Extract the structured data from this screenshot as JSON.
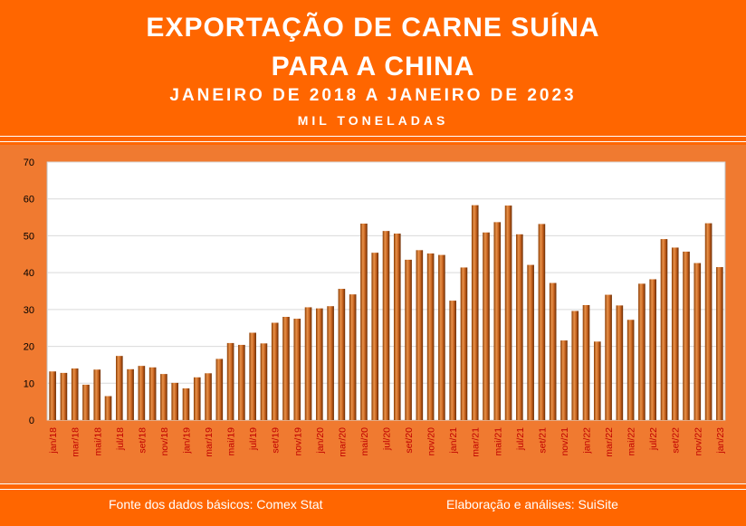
{
  "header": {
    "title_line1": "EXPORTAÇÃO DE CARNE SUÍNA",
    "title_line2": "PARA A CHINA",
    "subtitle": "JANEIRO DE 2018 A JANEIRO DE 2023",
    "unit": "MIL TONELADAS"
  },
  "footer": {
    "source": "Fonte dos dados básicos: Comex Stat",
    "credit": "Elaboração e análises: SuiSite"
  },
  "colors": {
    "frame": "#ff6600",
    "panel": "#f07a30",
    "bar_light": "#e8924a",
    "bar_dark": "#7a3300",
    "tick_label": "#c00000"
  },
  "chart_data": {
    "type": "bar",
    "title": "EXPORTAÇÃO DE CARNE SUÍNA PARA A CHINA",
    "subtitle": "JANEIRO DE 2018 A JANEIRO DE 2023",
    "ylabel": "MIL TONELADAS",
    "ylim": [
      0,
      70
    ],
    "y_ticks": [
      "0",
      "10",
      "20",
      "30",
      "40",
      "50",
      "60",
      "70"
    ],
    "grid": true,
    "legend": "none",
    "categories": [
      "jan/18",
      "fev/18",
      "mar/18",
      "abr/18",
      "mai/18",
      "jun/18",
      "jul/18",
      "ago/18",
      "set/18",
      "out/18",
      "nov/18",
      "dez/18",
      "jan/19",
      "fev/19",
      "mar/19",
      "abr/19",
      "mai/19",
      "jun/19",
      "jul/19",
      "ago/19",
      "set/19",
      "out/19",
      "nov/19",
      "dez/19",
      "jan/20",
      "fev/20",
      "mar/20",
      "abr/20",
      "mai/20",
      "jun/20",
      "jul/20",
      "ago/20",
      "set/20",
      "out/20",
      "nov/20",
      "dez/20",
      "jan/21",
      "fev/21",
      "mar/21",
      "abr/21",
      "mai/21",
      "jun/21",
      "jul/21",
      "ago/21",
      "set/21",
      "out/21",
      "nov/21",
      "dez/21",
      "jan/22",
      "fev/22",
      "mar/22",
      "abr/22",
      "mai/22",
      "jun/22",
      "jul/22",
      "ago/22",
      "set/22",
      "out/22",
      "nov/22",
      "dez/22",
      "jan/23"
    ],
    "x_tick_labels": [
      "jan/18",
      "mar/18",
      "mai/18",
      "jul/18",
      "set/18",
      "nov/18",
      "jan/19",
      "mar/19",
      "mai/19",
      "jul/19",
      "set/19",
      "nov/19",
      "jan/20",
      "mar/20",
      "mai/20",
      "jul/20",
      "set/20",
      "nov/20",
      "jan/21",
      "mar/21",
      "mai/21",
      "jul/21",
      "set/21",
      "nov/21",
      "jan/22",
      "mar/22",
      "mai/22",
      "jul/22",
      "set/22",
      "nov/22",
      "jan/23"
    ],
    "values": [
      13.2,
      12.8,
      14.0,
      9.6,
      13.7,
      6.5,
      17.4,
      13.8,
      14.7,
      14.3,
      12.5,
      10.1,
      8.6,
      11.6,
      12.7,
      16.6,
      20.9,
      20.4,
      23.7,
      20.8,
      26.4,
      28.0,
      27.5,
      30.6,
      30.3,
      30.9,
      35.6,
      34.1,
      53.3,
      45.4,
      51.3,
      50.6,
      43.5,
      46.1,
      45.2,
      44.8,
      32.4,
      41.4,
      58.3,
      50.9,
      53.7,
      58.2,
      50.4,
      42.1,
      53.2,
      37.2,
      21.6,
      29.6,
      31.2,
      21.3,
      34.0,
      31.1,
      27.2,
      37.0,
      38.2,
      49.1,
      46.8,
      45.7,
      42.6,
      53.4,
      41.5
    ]
  }
}
